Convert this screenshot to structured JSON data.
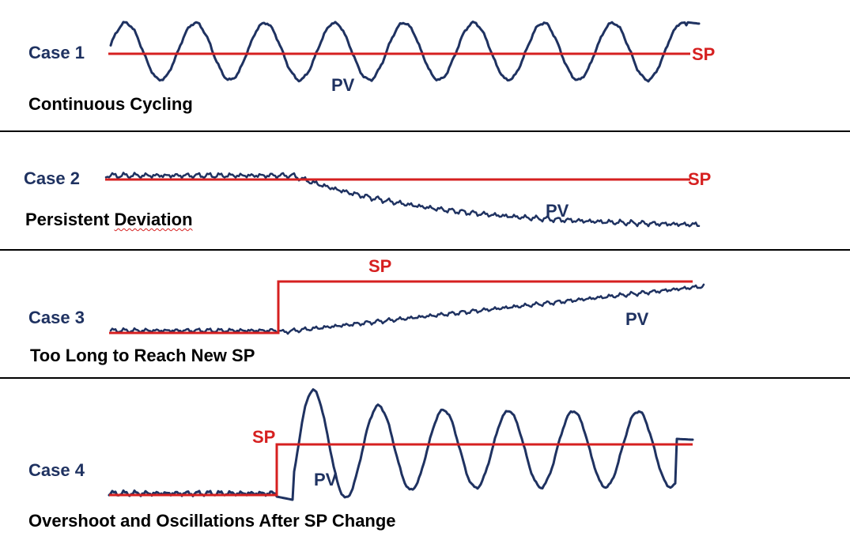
{
  "colors": {
    "pv": "#1f3261",
    "sp": "#d62020",
    "divider": "#000000",
    "text": "#000000"
  },
  "cases": [
    {
      "case_label": "Case 1",
      "title": "Continuous Cycling",
      "sp_label": "SP",
      "pv_label": "PV"
    },
    {
      "case_label": "Case 2",
      "title_part1": "Persistent ",
      "title_part2": "Deviation",
      "sp_label": "SP",
      "pv_label": "PV"
    },
    {
      "case_label": "Case 3",
      "title": "Too Long to Reach New SP",
      "sp_label": "SP",
      "pv_label": "PV"
    },
    {
      "case_label": "Case 4",
      "title": "Overshoot and Oscillations After SP Change",
      "sp_label": "SP",
      "pv_label": "PV"
    }
  ]
}
